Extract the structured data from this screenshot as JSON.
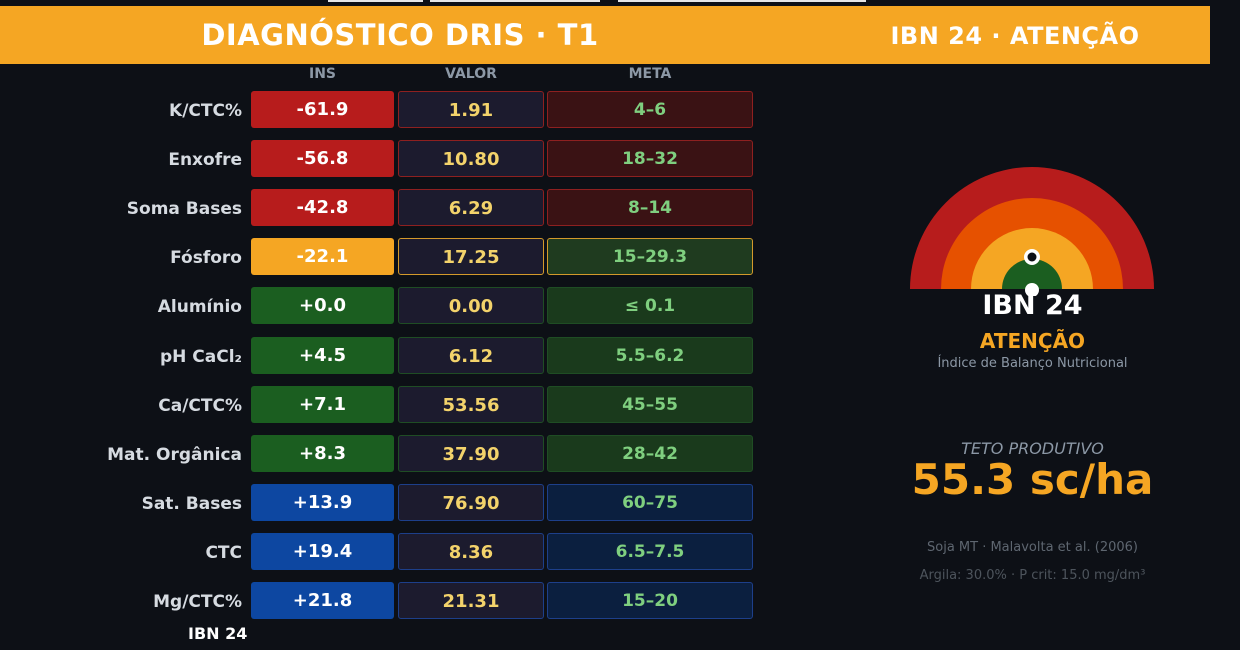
{
  "header": {
    "title": "DIAGNÓSTICO DRIS  ·  T1",
    "status": "IBN 24  ·  ATENÇÃO"
  },
  "columns": {
    "ins": "INS",
    "valor": "VALOR",
    "meta": "META"
  },
  "rows": [
    {
      "label": "K/CTC%",
      "ins": "-61.9",
      "valor": "1.91",
      "meta": "4–6",
      "level": "red"
    },
    {
      "label": "Enxofre",
      "ins": "-56.8",
      "valor": "10.80",
      "meta": "18–32",
      "level": "red"
    },
    {
      "label": "Soma Bases",
      "ins": "-42.8",
      "valor": "6.29",
      "meta": "8–14",
      "level": "red"
    },
    {
      "label": "Fósforo",
      "ins": "-22.1",
      "valor": "17.25",
      "meta": "15–29.3",
      "level": "orange"
    },
    {
      "label": "Alumínio",
      "ins": "+0.0",
      "valor": "0.00",
      "meta": "≤ 0.1",
      "level": "green"
    },
    {
      "label": "pH CaCl₂",
      "ins": "+4.5",
      "valor": "6.12",
      "meta": "5.5–6.2",
      "level": "green"
    },
    {
      "label": "Ca/CTC%",
      "ins": "+7.1",
      "valor": "53.56",
      "meta": "45–55",
      "level": "green"
    },
    {
      "label": "Mat. Orgânica",
      "ins": "+8.3",
      "valor": "37.90",
      "meta": "28–42",
      "level": "green"
    },
    {
      "label": "Sat. Bases",
      "ins": "+13.9",
      "valor": "76.90",
      "meta": "60–75",
      "level": "blue"
    },
    {
      "label": "CTC",
      "ins": "+19.4",
      "valor": "8.36",
      "meta": "6.5–7.5",
      "level": "blue"
    },
    {
      "label": "Mg/CTC%",
      "ins": "+21.8",
      "valor": "21.31",
      "meta": "15–20",
      "level": "blue"
    }
  ],
  "footer_label": "IBN 24",
  "gauge": {
    "ibn": "IBN 24",
    "status": "ATENÇÃO",
    "subtitle": "Índice de Balanço Nutricional",
    "value": 24,
    "bands": [
      "red",
      "dark-orange",
      "orange",
      "green"
    ]
  },
  "teto": {
    "label": "TETO PRODUTIVO",
    "value": "55.3 sc/ha"
  },
  "source": "Soja MT  ·  Malavolta et al. (2006)",
  "params": "Argila: 30.0%  ·  P crit: 15.0 mg/dm³",
  "colors": {
    "accent": "#f5a623",
    "red": "#b71c1c",
    "orange": "#f5a623",
    "green": "#1b5e20",
    "blue": "#0d47a1",
    "gauge_dark_orange": "#e65100",
    "background": "#0d1016"
  }
}
